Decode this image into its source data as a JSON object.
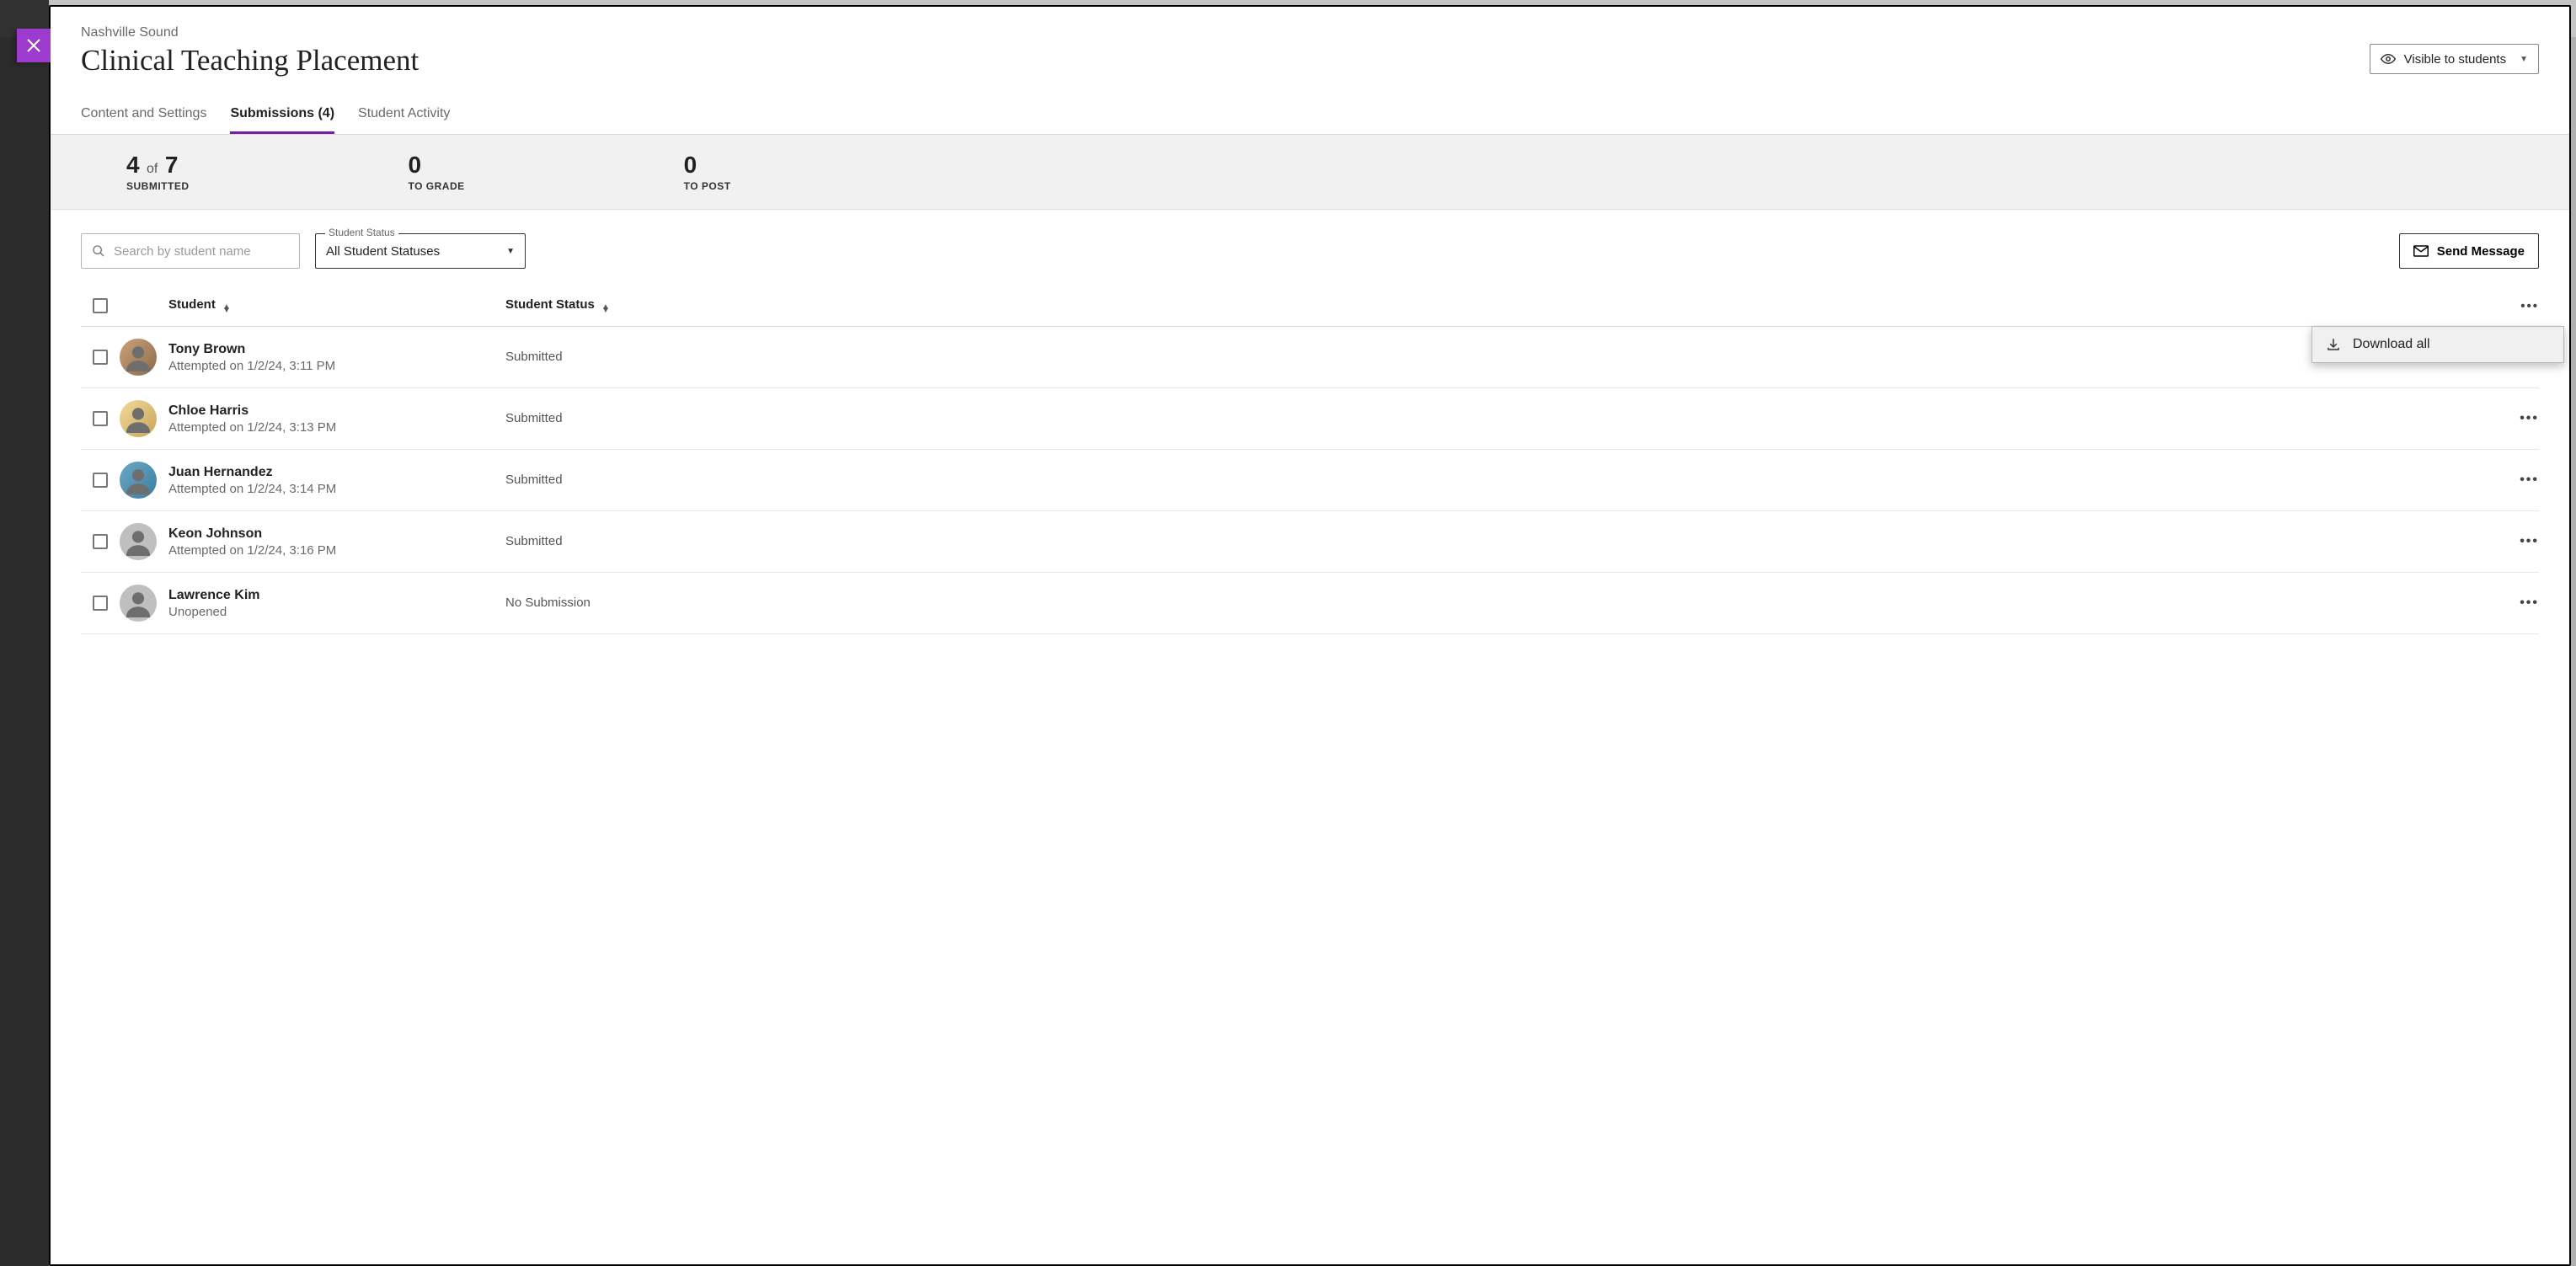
{
  "header": {
    "breadcrumb": "Nashville Sound",
    "title": "Clinical Teaching Placement",
    "visibility_label": "Visible to students"
  },
  "tabs": {
    "content": "Content and Settings",
    "submissions": "Submissions (4)",
    "activity": "Student Activity"
  },
  "stats": {
    "submitted_count": "4",
    "submitted_of": "of",
    "submitted_total": "7",
    "submitted_label": "SUBMITTED",
    "to_grade_count": "0",
    "to_grade_label": "TO GRADE",
    "to_post_count": "0",
    "to_post_label": "TO POST"
  },
  "controls": {
    "search_placeholder": "Search by student name",
    "status_legend": "Student Status",
    "status_value": "All Student Statuses",
    "send_message": "Send Message"
  },
  "table": {
    "col_student": "Student",
    "col_status": "Student Status"
  },
  "menu": {
    "download_all": "Download all"
  },
  "rows": [
    {
      "name": "Tony Brown",
      "sub": "Attempted on 1/2/24, 3:11 PM",
      "status": "Submitted",
      "avatar": "av-1",
      "has_menu": false
    },
    {
      "name": "Chloe Harris",
      "sub": "Attempted on 1/2/24, 3:13 PM",
      "status": "Submitted",
      "avatar": "av-2",
      "has_menu": true
    },
    {
      "name": "Juan Hernandez",
      "sub": "Attempted on 1/2/24, 3:14 PM",
      "status": "Submitted",
      "avatar": "av-3",
      "has_menu": true
    },
    {
      "name": "Keon Johnson",
      "sub": "Attempted on 1/2/24, 3:16 PM",
      "status": "Submitted",
      "avatar": "av-gray",
      "has_menu": true
    },
    {
      "name": "Lawrence Kim",
      "sub": "Unopened",
      "status": "No Submission",
      "avatar": "av-gray",
      "has_menu": true
    }
  ],
  "colors": {
    "accent": "#7b1fa2",
    "close_bg": "#9d3bcf"
  }
}
